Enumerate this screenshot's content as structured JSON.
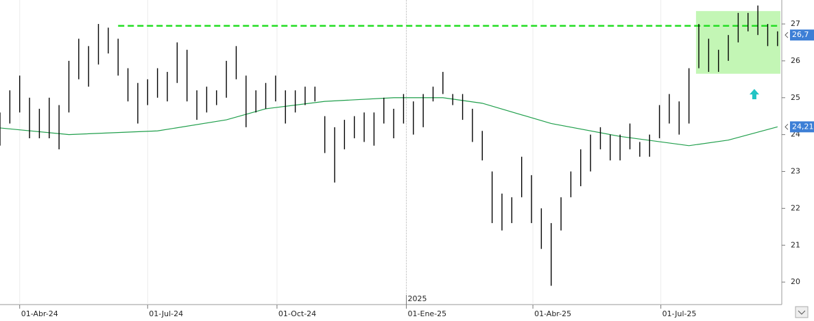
{
  "chart_data": {
    "type": "hilo",
    "color": "#000000",
    "x": [
      "2024-03-18",
      "2024-03-25",
      "2024-04-01",
      "2024-04-08",
      "2024-04-15",
      "2024-04-22",
      "2024-04-29",
      "2024-05-06",
      "2024-05-13",
      "2024-05-20",
      "2024-05-27",
      "2024-06-03",
      "2024-06-10",
      "2024-06-17",
      "2024-06-24",
      "2024-07-01",
      "2024-07-08",
      "2024-07-15",
      "2024-07-22",
      "2024-07-29",
      "2024-08-05",
      "2024-08-12",
      "2024-08-19",
      "2024-08-26",
      "2024-09-02",
      "2024-09-09",
      "2024-09-16",
      "2024-09-23",
      "2024-09-30",
      "2024-10-07",
      "2024-10-14",
      "2024-10-21",
      "2024-10-28",
      "2024-11-04",
      "2024-11-11",
      "2024-11-18",
      "2024-11-25",
      "2024-12-02",
      "2024-12-09",
      "2024-12-16",
      "2024-12-23",
      "2024-12-30",
      "2025-01-06",
      "2025-01-13",
      "2025-01-20",
      "2025-01-27",
      "2025-02-03",
      "2025-02-10",
      "2025-02-17",
      "2025-02-24",
      "2025-03-03",
      "2025-03-10",
      "2025-03-17",
      "2025-03-24",
      "2025-03-31",
      "2025-04-07",
      "2025-04-14",
      "2025-04-21",
      "2025-04-28",
      "2025-05-05",
      "2025-05-12",
      "2025-05-19",
      "2025-05-26",
      "2025-06-02",
      "2025-06-09",
      "2025-06-16",
      "2025-06-23",
      "2025-06-30",
      "2025-07-07",
      "2025-07-14",
      "2025-07-21",
      "2025-07-28",
      "2025-08-04",
      "2025-08-11",
      "2025-08-18",
      "2025-08-25",
      "2025-09-01",
      "2025-09-08",
      "2025-09-15",
      "2025-09-22"
    ],
    "low": [
      23.7,
      24.3,
      24.6,
      23.9,
      23.9,
      23.9,
      23.6,
      24.6,
      25.5,
      25.3,
      25.9,
      26.2,
      25.6,
      24.9,
      24.3,
      24.8,
      25.0,
      24.9,
      25.4,
      24.9,
      24.4,
      24.6,
      24.8,
      25.0,
      25.5,
      24.2,
      24.6,
      24.7,
      24.9,
      24.3,
      24.6,
      24.8,
      24.9,
      23.5,
      22.7,
      23.6,
      23.9,
      23.8,
      23.7,
      24.3,
      23.9,
      24.3,
      24.0,
      24.2,
      24.9,
      25.1,
      24.8,
      24.4,
      23.8,
      23.3,
      21.6,
      21.4,
      21.6,
      22.3,
      21.6,
      20.9,
      19.9,
      21.4,
      22.3,
      22.6,
      23.0,
      23.6,
      23.3,
      23.3,
      23.6,
      23.4,
      23.4,
      23.9,
      24.3,
      24.0,
      24.3,
      25.8,
      25.7,
      25.7,
      26.0,
      26.5,
      26.8,
      26.7,
      26.4,
      26.4
    ],
    "high": [
      24.6,
      25.2,
      25.6,
      25.0,
      24.7,
      25.0,
      24.8,
      26.0,
      26.6,
      26.4,
      27.0,
      26.9,
      26.6,
      25.8,
      25.4,
      25.5,
      25.8,
      25.7,
      26.5,
      26.3,
      25.2,
      25.3,
      25.2,
      26.0,
      26.4,
      25.6,
      25.2,
      25.4,
      25.6,
      25.2,
      25.2,
      25.3,
      25.3,
      24.5,
      24.2,
      24.4,
      24.5,
      24.6,
      24.6,
      25.0,
      24.7,
      25.1,
      24.9,
      25.1,
      25.3,
      25.7,
      25.1,
      25.1,
      24.7,
      24.1,
      23.0,
      22.4,
      22.3,
      23.4,
      22.9,
      22.0,
      21.6,
      22.3,
      23.0,
      23.6,
      24.0,
      24.2,
      24.0,
      24.0,
      24.3,
      23.8,
      24.0,
      24.8,
      25.1,
      24.9,
      25.8,
      27.0,
      26.6,
      26.3,
      26.7,
      27.3,
      27.3,
      27.5,
      27.0,
      26.8
    ],
    "ma": {
      "color": "#1e9e4a",
      "x": [
        "2024-03-18",
        "2024-05-06",
        "2024-07-08",
        "2024-08-26",
        "2024-09-23",
        "2024-11-04",
        "2024-12-23",
        "2025-01-27",
        "2025-02-24",
        "2025-04-14",
        "2025-06-02",
        "2025-07-21",
        "2025-08-18",
        "2025-09-22"
      ],
      "values": [
        24.18,
        24.0,
        24.1,
        24.4,
        24.7,
        24.9,
        25.0,
        25.0,
        24.85,
        24.3,
        23.95,
        23.7,
        23.85,
        24.21
      ]
    },
    "resistance": {
      "level": 26.95,
      "start": "2024-06-10",
      "color": "#22dd22"
    },
    "zone": {
      "x": [
        "2025-07-26",
        "2025-09-24"
      ],
      "y": [
        25.65,
        27.35
      ],
      "color": "#b8f5a8"
    },
    "last_labels": [
      {
        "value": 26.7,
        "label": "26,7"
      },
      {
        "value": 24.21,
        "label": "24,21"
      }
    ],
    "xlim": [
      "2024-03-18",
      "2025-09-25"
    ],
    "xticks": [
      {
        "value": "2024-04-01",
        "label": "01-Abr-24"
      },
      {
        "value": "2024-07-01",
        "label": "01-Jul-24"
      },
      {
        "value": "2024-10-01",
        "label": "01-Oct-24"
      },
      {
        "value": "2025-01-01",
        "label": "01-Ene-25"
      },
      {
        "value": "2025-04-01",
        "label": "01-Abr-25"
      },
      {
        "value": "2025-07-01",
        "label": "01-Jul-25"
      }
    ],
    "year_marker": {
      "value": "2025-01-01",
      "label": "2025"
    },
    "ylim": [
      19.39,
      27.65
    ],
    "yticks": [
      20,
      21,
      22,
      23,
      24,
      25,
      26,
      27
    ],
    "grid": true
  }
}
